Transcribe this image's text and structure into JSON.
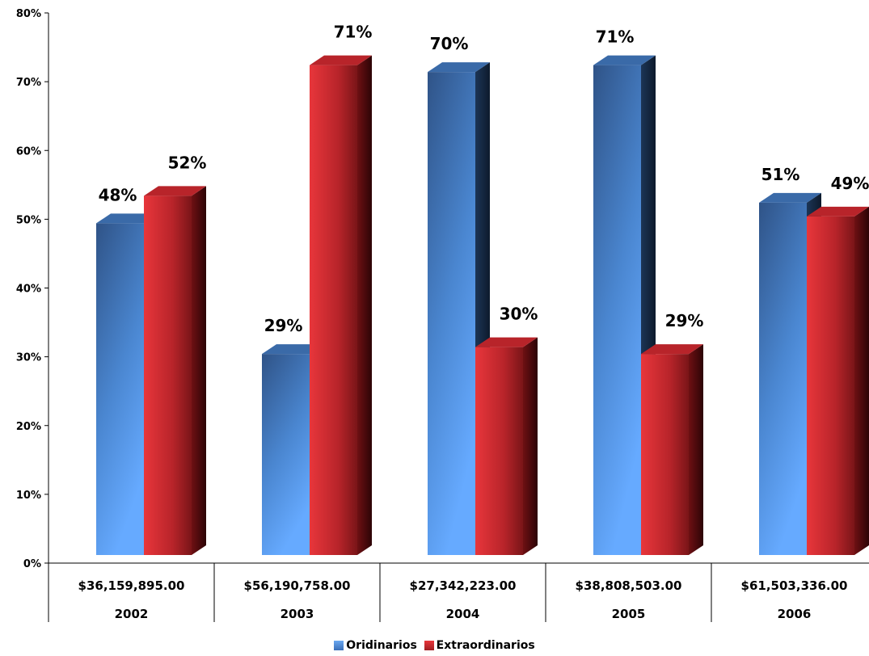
{
  "chart_data": {
    "type": "bar",
    "categories": [
      {
        "amount": "$36,159,895.00",
        "year": "2002"
      },
      {
        "amount": "$56,190,758.00",
        "year": "2003"
      },
      {
        "amount": "$27,342,223.00",
        "year": "2004"
      },
      {
        "amount": "$38,808,503.00",
        "year": "2005"
      },
      {
        "amount": "$61,503,336.00",
        "year": "2006"
      }
    ],
    "series": [
      {
        "name": "Oridinarios",
        "color": "#4f86d6",
        "values": [
          48,
          29,
          70,
          71,
          51
        ],
        "labels": [
          "48%",
          "29%",
          "70%",
          "71%",
          "51%"
        ]
      },
      {
        "name": "Extraordinarios",
        "color": "#d92a30",
        "values": [
          52,
          71,
          30,
          29,
          49
        ],
        "labels": [
          "52%",
          "71%",
          "30%",
          "29%",
          "49%"
        ]
      }
    ],
    "y_ticks": [
      "0%",
      "10%",
      "20%",
      "30%",
      "40%",
      "50%",
      "60%",
      "70%",
      "80%"
    ],
    "ylim": [
      0,
      80
    ],
    "legend_position": "bottom",
    "grid": false
  }
}
